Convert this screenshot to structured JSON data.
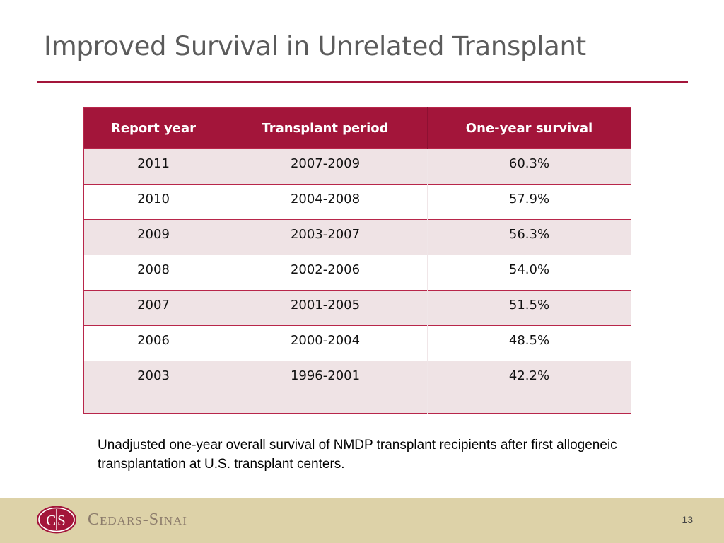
{
  "slide": {
    "title": "Improved Survival in Unrelated Transplant",
    "caption": "Unadjusted one-year overall survival of NMDP transplant recipients after first allogeneic transplantation at U.S. transplant centers.",
    "page_number": "13"
  },
  "table": {
    "headers": [
      "Report year",
      "Transplant period",
      "One-year survival"
    ],
    "rows": [
      [
        "2011",
        "2007-2009",
        "60.3%"
      ],
      [
        "2010",
        "2004-2008",
        "57.9%"
      ],
      [
        "2009",
        "2003-2007",
        "56.3%"
      ],
      [
        "2008",
        "2002-2006",
        "54.0%"
      ],
      [
        "2007",
        "2001-2005",
        "51.5%"
      ],
      [
        "2006",
        "2000-2004",
        "48.5%"
      ],
      [
        "2003",
        "1996-2001",
        "42.2%"
      ]
    ]
  },
  "footer": {
    "logo_text": "Cedars-Sinai",
    "logo_mark_text": "CS",
    "logo_icon": "cedars-sinai-logo-icon"
  },
  "colors": {
    "accent": "#a3153a",
    "row_shade": "#efe3e5",
    "footer_bg": "#ddd2a8",
    "title_text": "#5b5b5b",
    "logo_text": "#8b7b6b"
  }
}
